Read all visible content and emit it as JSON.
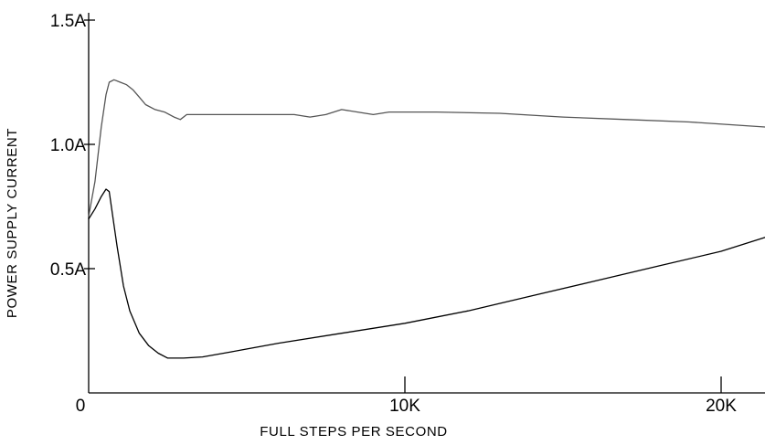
{
  "chart_data": {
    "type": "line",
    "xlabel": "FULL STEPS PER SECOND",
    "ylabel": "POWER SUPPLY CURRENT",
    "xlim": [
      0,
      21500
    ],
    "ylim": [
      0,
      1.5
    ],
    "grid": false,
    "x_ticks": [
      {
        "value": 0,
        "label": "0"
      },
      {
        "value": 10000,
        "label": "10K"
      },
      {
        "value": 20000,
        "label": "20K"
      }
    ],
    "y_ticks": [
      {
        "value": 0.5,
        "label": "0.5A"
      },
      {
        "value": 1.0,
        "label": "1.0A"
      },
      {
        "value": 1.5,
        "label": "1.5A"
      }
    ],
    "series": [
      {
        "color": "#555555",
        "x": [
          0,
          200,
          400,
          550,
          650,
          800,
          1000,
          1200,
          1400,
          1600,
          1800,
          2100,
          2400,
          2700,
          2900,
          3100,
          3500,
          5000,
          6500,
          7000,
          7500,
          8000,
          8500,
          9000,
          9500,
          10000,
          11000,
          13000,
          15000,
          17000,
          19000,
          21400
        ],
        "y": [
          0.71,
          0.85,
          1.07,
          1.2,
          1.25,
          1.26,
          1.25,
          1.24,
          1.22,
          1.19,
          1.16,
          1.14,
          1.13,
          1.11,
          1.1,
          1.12,
          1.12,
          1.12,
          1.12,
          1.11,
          1.12,
          1.14,
          1.13,
          1.12,
          1.13,
          1.13,
          1.13,
          1.125,
          1.11,
          1.1,
          1.09,
          1.07
        ]
      },
      {
        "color": "#000000",
        "x": [
          0,
          200,
          400,
          550,
          650,
          750,
          900,
          1100,
          1300,
          1600,
          1900,
          2200,
          2500,
          3000,
          3600,
          4500,
          6000,
          8000,
          10000,
          12000,
          14000,
          16000,
          18000,
          20000,
          21500
        ],
        "y": [
          0.7,
          0.74,
          0.79,
          0.82,
          0.81,
          0.72,
          0.59,
          0.43,
          0.33,
          0.24,
          0.19,
          0.16,
          0.14,
          0.14,
          0.145,
          0.165,
          0.2,
          0.24,
          0.28,
          0.33,
          0.39,
          0.45,
          0.51,
          0.57,
          0.63
        ]
      }
    ]
  }
}
